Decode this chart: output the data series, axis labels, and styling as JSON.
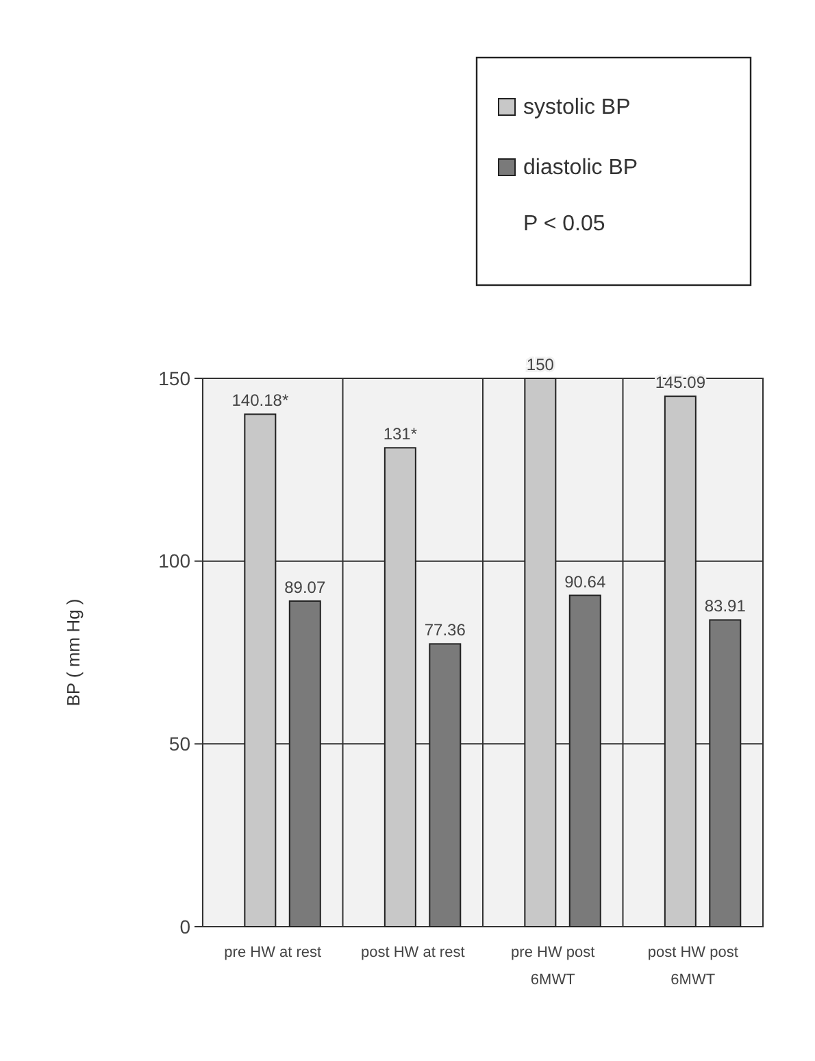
{
  "chart_data": {
    "type": "bar",
    "ylabel": "BP ( mm Hg )",
    "categories": [
      "pre HW at rest",
      "post HW at rest",
      "pre HW post 6MWT",
      "post HW post 6MWT"
    ],
    "series": [
      {
        "name": "systolic BP",
        "color": "#c8c8c8",
        "values": [
          140.18,
          131,
          150,
          145.09
        ],
        "value_labels": [
          "140.18*",
          "131*",
          "150",
          "145.09"
        ]
      },
      {
        "name": "diastolic BP",
        "color": "#7a7a7a",
        "values": [
          89.07,
          77.36,
          90.64,
          83.91
        ],
        "value_labels": [
          "89.07",
          "77.36",
          "90.64",
          "83.91"
        ]
      }
    ],
    "ylim": [
      0,
      150
    ],
    "yticks": [
      0,
      50,
      100,
      150
    ],
    "grid": "y",
    "legend": "top right",
    "annotations": [
      "P < 0.05"
    ]
  }
}
